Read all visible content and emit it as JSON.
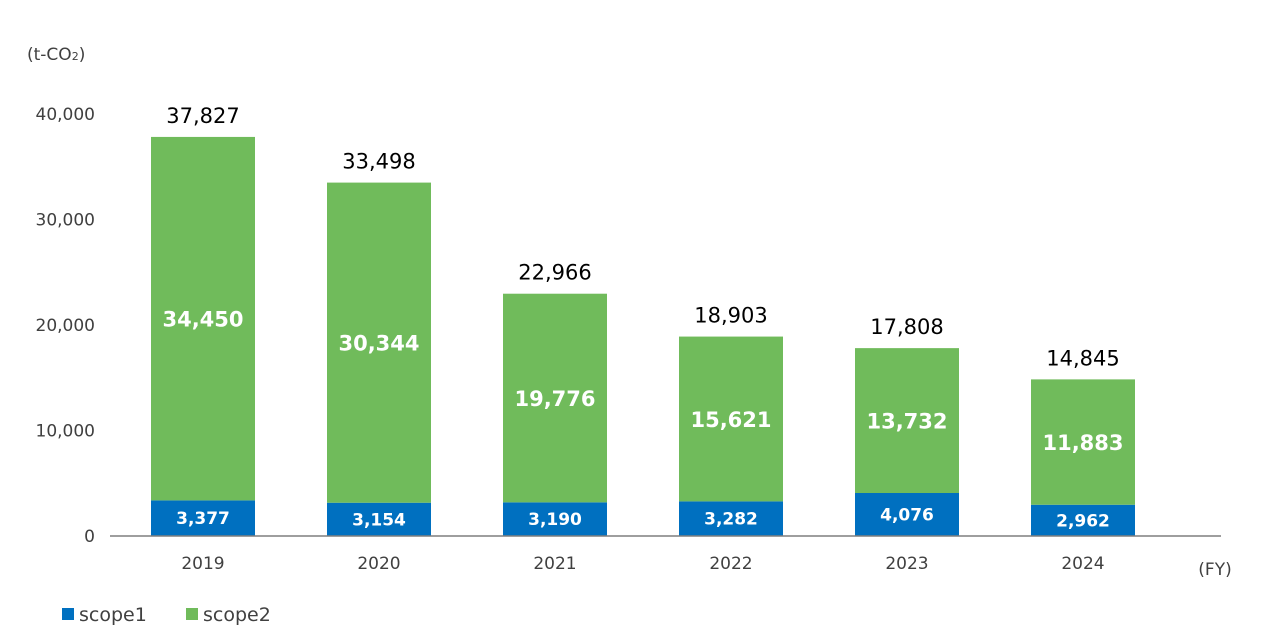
{
  "chart_data": {
    "type": "bar",
    "stacked": true,
    "title": "",
    "unit_label": "(t-CO",
    "unit_subscript": "2",
    "unit_close": ")",
    "xlabel": "(FY)",
    "ylabel": "",
    "ylim": [
      0,
      40000
    ],
    "yticks": [
      0,
      10000,
      20000,
      30000,
      40000
    ],
    "ytick_labels": [
      "0",
      "10,000",
      "20,000",
      "30,000",
      "40,000"
    ],
    "grid": false,
    "legend_position": "bottom-left",
    "categories": [
      "2019",
      "2020",
      "2021",
      "2022",
      "2023",
      "2024"
    ],
    "series": [
      {
        "name": "scope1",
        "color": "#0070c0",
        "values": [
          3377,
          3154,
          3190,
          3282,
          4076,
          2962
        ],
        "labels": [
          "3,377",
          "3,154",
          "3,190",
          "3,282",
          "4,076",
          "2,962"
        ]
      },
      {
        "name": "scope2",
        "color": "#70bb5b",
        "values": [
          34450,
          30344,
          19776,
          15621,
          13732,
          11883
        ],
        "labels": [
          "34,450",
          "30,344",
          "19,776",
          "15,621",
          "13,732",
          "11,883"
        ]
      }
    ],
    "totals": [
      37827,
      33498,
      22966,
      18903,
      17808,
      14845
    ],
    "total_labels": [
      "37,827",
      "33,498",
      "22,966",
      "18,903",
      "17,808",
      "14,845"
    ]
  }
}
